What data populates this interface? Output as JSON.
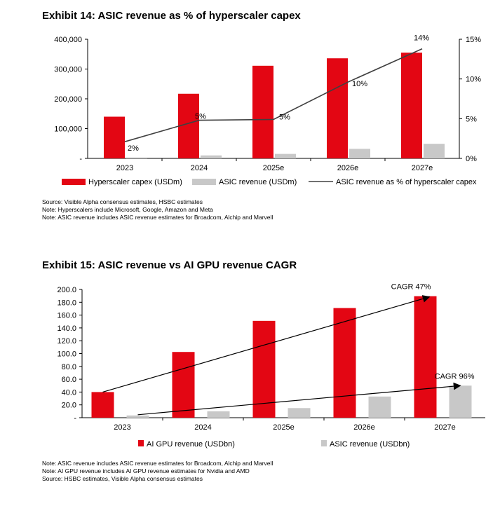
{
  "exhibit14": {
    "title": "Exhibit 14: ASIC revenue as % of hyperscaler capex",
    "notes": [
      "Source: Visible Alpha consensus estimates, HSBC estimates",
      "Note: Hyperscalers include Microsoft, Google, Amazon and Meta",
      "Note: ASIC revenue includes ASIC revenue estimates for Broadcom, Alchip and Marvell"
    ]
  },
  "exhibit15": {
    "title": "Exhibit 15: ASIC revenue vs AI GPU revenue CAGR",
    "notes": [
      "Note: ASIC revenue includes ASIC revenue estimates for Broadcom, Alchip and Marvell",
      "Note: AI GPU revenue includes AI GPU revenue estimates for Nvidia and AMD",
      "Source: HSBC estimates, Visible Alpha consensus estimates"
    ]
  },
  "colors": {
    "red": "#e30613",
    "grey": "#c8c8c8",
    "line": "#404040"
  },
  "chart_data": [
    {
      "type": "bar",
      "title": "Exhibit 14: ASIC revenue as % of hyperscaler capex",
      "categories": [
        "2023",
        "2024",
        "2025e",
        "2026e",
        "2027e"
      ],
      "series": [
        {
          "name": "Hyperscaler capex (USDm)",
          "axis": "left",
          "color": "#e30613",
          "values": [
            140000,
            217000,
            311000,
            336000,
            355000
          ]
        },
        {
          "name": "ASIC revenue (USDm)",
          "axis": "left",
          "color": "#c8c8c8",
          "values": [
            3000,
            10000,
            15000,
            32000,
            49000
          ]
        },
        {
          "name": "ASIC revenue as % of hyperscaler capex",
          "axis": "right",
          "kind": "line",
          "color": "#404040",
          "values": [
            2.1,
            4.8,
            4.9,
            9.6,
            13.8
          ],
          "labels": [
            "2%",
            "5%",
            "5%",
            "10%",
            "14%"
          ]
        }
      ],
      "ylim": [
        0,
        400000
      ],
      "yticks": [
        "-",
        "100,000",
        "200,000",
        "300,000",
        "400,000"
      ],
      "y2lim": [
        0,
        15
      ],
      "y2ticks": [
        "0%",
        "5%",
        "10%",
        "15%"
      ],
      "legend": "bottom"
    },
    {
      "type": "bar",
      "title": "Exhibit 15: ASIC revenue vs AI GPU revenue CAGR",
      "categories": [
        "2023",
        "2024",
        "2025e",
        "2026e",
        "2027e"
      ],
      "series": [
        {
          "name": "AI GPU revenue (USDbn)",
          "color": "#e30613",
          "values": [
            40.0,
            102.5,
            151.0,
            171.0,
            189.5
          ]
        },
        {
          "name": "ASIC revenue (USDbn)",
          "color": "#c8c8c8",
          "values": [
            3.5,
            10.0,
            15.0,
            33.0,
            50.0
          ]
        }
      ],
      "annotations": [
        "CAGR 47%",
        "CAGR 96%"
      ],
      "ylim": [
        0,
        200
      ],
      "yticks": [
        "-",
        "20.0",
        "40.0",
        "60.0",
        "80.0",
        "100.0",
        "120.0",
        "140.0",
        "160.0",
        "180.0",
        "200.0"
      ],
      "legend": "bottom"
    }
  ]
}
